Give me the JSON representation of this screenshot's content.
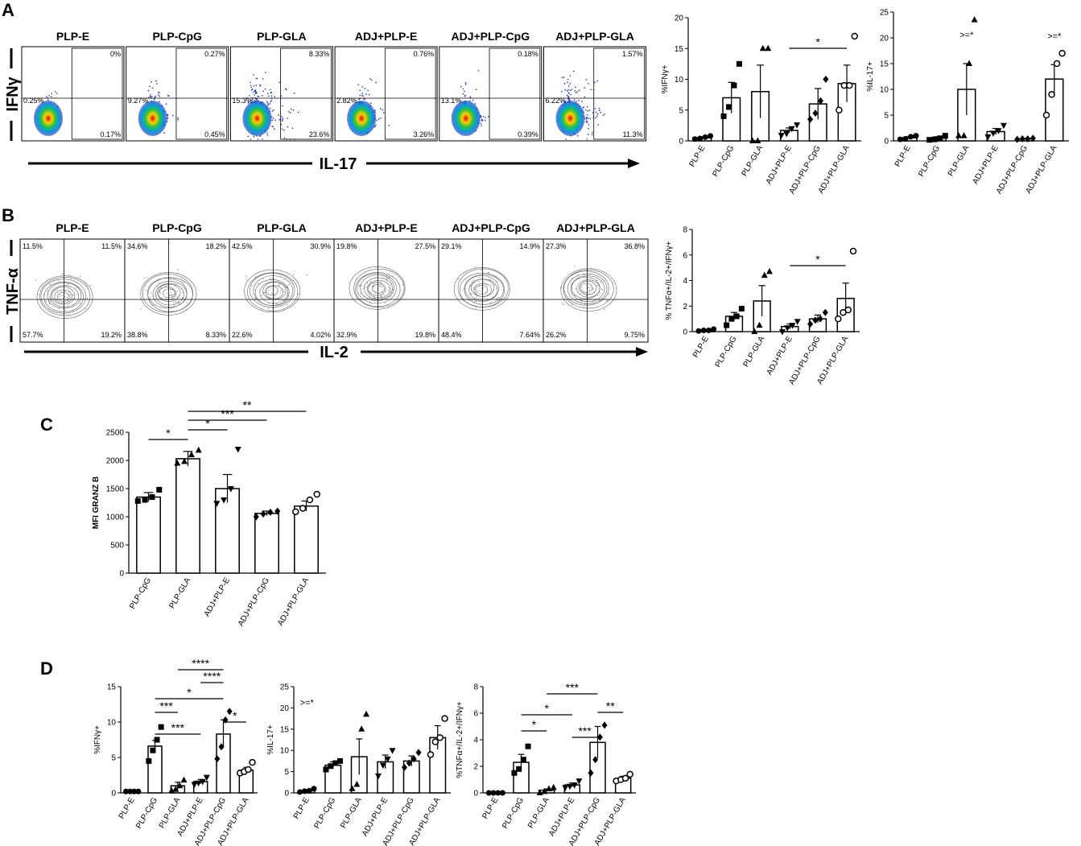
{
  "panels": [
    "A",
    "B",
    "C",
    "D"
  ],
  "flow_a": {
    "y_axis": "IFNγ",
    "x_axis": "IL-17",
    "plots": [
      {
        "title": "PLP-E",
        "tr": "0%",
        "left": "0.25%",
        "br": "0.17%"
      },
      {
        "title": "PLP-CpG",
        "tr": "0.27%",
        "left": "9.27%",
        "br": "0.45%"
      },
      {
        "title": "PLP-GLA",
        "tr": "8.33%",
        "left": "15.3%",
        "br": "23.6%"
      },
      {
        "title": "ADJ+PLP-E",
        "tr": "0.76%",
        "left": "2.82%",
        "br": "3.26%"
      },
      {
        "title": "ADJ+PLP-CpG",
        "tr": "0.18%",
        "left": "13.1%",
        "br": "0.39%"
      },
      {
        "title": "ADJ+PLP-GLA",
        "tr": "1.57%",
        "left": "6.22%",
        "br": "11.3%"
      }
    ]
  },
  "flow_b": {
    "y_axis": "TNF-α",
    "x_axis": "IL-2",
    "plots": [
      {
        "title": "PLP-E",
        "tl": "11.5%",
        "tr": "11.5%",
        "bl": "57.7%",
        "br": "19.2%"
      },
      {
        "title": "PLP-CpG",
        "tl": "34.6%",
        "tr": "18.2%",
        "bl": "38.8%",
        "br": "8.33%"
      },
      {
        "title": "PLP-GLA",
        "tl": "42.5%",
        "tr": "30.9%",
        "bl": "22.6%",
        "br": "4.02%"
      },
      {
        "title": "ADJ+PLP-E",
        "tl": "19.8%",
        "tr": "27.5%",
        "bl": "32.9%",
        "br": "19.8%"
      },
      {
        "title": "ADJ+PLP-CpG",
        "tl": "29.1%",
        "tr": "14.9%",
        "bl": "48.4%",
        "br": "7.64%"
      },
      {
        "title": "ADJ+PLP-GLA",
        "tl": "27.3%",
        "tr": "36.8%",
        "bl": "26.2%",
        "br": "9.75%"
      }
    ]
  },
  "chart_data": [
    {
      "type": "bar",
      "ylabel": "%IFNγ+",
      "color": "#000000",
      "categories": [
        "PLP-E",
        "PLP-CpG",
        "PLP-GLA",
        "ADJ+PLP-E",
        "ADJ+PLP-CpG",
        "ADJ+PLP-GLA"
      ],
      "markers": [
        "circle",
        "square",
        "triangle",
        "triangle-down",
        "diamond",
        "open-circle"
      ],
      "values": [
        0.5,
        7,
        8,
        1.7,
        6,
        9.3
      ],
      "errors": [
        0.15,
        2.5,
        4.3,
        0.4,
        2.5,
        3
      ],
      "points": [
        [
          0.3,
          0.4,
          0.6,
          0.8
        ],
        [
          4,
          5.5,
          9,
          12.5
        ],
        [
          0,
          0,
          15,
          15
        ],
        [
          0.9,
          1.2,
          2,
          2.6
        ],
        [
          3.5,
          4.5,
          6.5,
          10
        ],
        [
          5,
          9,
          9,
          17
        ]
      ],
      "ylim": [
        0,
        20
      ],
      "yticks": [
        0,
        5,
        10,
        15,
        20
      ],
      "significance": [
        {
          "label": "*",
          "groups": [
            "ADJ+PLP-E",
            "ADJ+PLP-GLA"
          ]
        }
      ],
      "annotations": []
    },
    {
      "type": "bar",
      "ylabel": "%IL-17+",
      "color": "#000000",
      "categories": [
        "PLP-E",
        "PLP-CpG",
        "PLP-GLA",
        "ADJ+PLP-E",
        "ADJ+PLP-CpG",
        "ADJ+PLP-GLA"
      ],
      "markers": [
        "circle",
        "square",
        "triangle",
        "triangle-down",
        "diamond",
        "open-circle"
      ],
      "values": [
        0.6,
        0.5,
        10,
        1.8,
        0.4,
        12
      ],
      "errors": [
        0.2,
        0.3,
        5,
        0.6,
        0.1,
        2.8
      ],
      "points": [
        [
          0.3,
          0.4,
          0.8,
          1
        ],
        [
          0.2,
          0.3,
          0.5,
          1
        ],
        [
          1,
          1,
          15,
          23.5
        ],
        [
          0.8,
          1.5,
          2,
          3
        ],
        [
          0.3,
          0.4,
          0.4,
          0.5
        ],
        [
          5,
          9,
          15,
          17
        ]
      ],
      "ylim": [
        0,
        25
      ],
      "yticks": [
        0,
        5,
        10,
        15,
        20,
        25
      ],
      "significance": [],
      "annotations": [
        {
          "text": ">=*",
          "category": "PLP-GLA"
        },
        {
          "text": ">=*",
          "category": "ADJ+PLP-GLA"
        }
      ]
    },
    {
      "type": "bar",
      "ylabel": "% TNFα+/IL-2+/IFNγ+",
      "color": "#000000",
      "categories": [
        "PLP-E",
        "PLP-CpG",
        "PLP-GLA",
        "ADJ+PLP-E",
        "ADJ+PLP-CpG",
        "ADJ+PLP-GLA"
      ],
      "markers": [
        "circle",
        "square",
        "triangle",
        "triangle-down",
        "diamond",
        "open-circle"
      ],
      "values": [
        0.1,
        1.2,
        2.4,
        0.4,
        1,
        2.6
      ],
      "errors": [
        0.05,
        0.3,
        1.2,
        0.2,
        0.3,
        1.2
      ],
      "points": [
        [
          0.05,
          0.1,
          0.1,
          0.2
        ],
        [
          0.5,
          1,
          1.2,
          1.8
        ],
        [
          0,
          0.5,
          4.4,
          4.7
        ],
        [
          0,
          0.3,
          0.5,
          0.8
        ],
        [
          0.6,
          0.9,
          1,
          1.5
        ],
        [
          1,
          1.5,
          1.7,
          6.3
        ]
      ],
      "ylim": [
        0,
        8
      ],
      "yticks": [
        0,
        2,
        4,
        6,
        8
      ],
      "significance": [
        {
          "label": "*",
          "groups": [
            "ADJ+PLP-E",
            "ADJ+PLP-GLA"
          ]
        }
      ],
      "annotations": []
    },
    {
      "type": "bar",
      "ylabel": "MFI GRANZ B",
      "color": "#000000",
      "categories": [
        "PLP-CpG",
        "PLP-GLA",
        "ADJ+PLP-E",
        "ADJ+PLP-CpG",
        "ADJ+PLP-GLA"
      ],
      "markers": [
        "square",
        "triangle",
        "triangle-down",
        "diamond",
        "open-circle"
      ],
      "values": [
        1350,
        2030,
        1500,
        1060,
        1190
      ],
      "errors": [
        80,
        130,
        250,
        40,
        90
      ],
      "points": [
        [
          1280,
          1300,
          1350,
          1480
        ],
        [
          1950,
          1980,
          2100,
          2180
        ],
        [
          1240,
          1300,
          1500,
          2200
        ],
        [
          1000,
          1050,
          1080,
          1100
        ],
        [
          1090,
          1150,
          1300,
          1400
        ]
      ],
      "ylim": [
        0,
        2500
      ],
      "yticks": [
        0,
        500,
        1000,
        1500,
        2000,
        2500
      ],
      "significance": [
        {
          "label": "**",
          "groups": [
            "PLP-GLA",
            "ADJ+PLP-GLA"
          ]
        },
        {
          "label": "***",
          "groups": [
            "PLP-GLA",
            "ADJ+PLP-CpG"
          ]
        },
        {
          "label": "*",
          "groups": [
            "PLP-GLA",
            "ADJ+PLP-E"
          ]
        },
        {
          "label": "*",
          "groups": [
            "PLP-CpG",
            "PLP-GLA"
          ]
        }
      ],
      "annotations": []
    },
    {
      "type": "bar",
      "ylabel": "%IFNγ+",
      "color": "#000000",
      "categories": [
        "PLP-E",
        "PLP-CpG",
        "PLP-GLA",
        "ADJ+PLP-E",
        "ADJ+PLP-CpG",
        "ADJ+PLP-GLA"
      ],
      "markers": [
        "circle",
        "square",
        "triangle",
        "triangle-down",
        "diamond",
        "open-circle"
      ],
      "values": [
        0.2,
        6.6,
        1,
        1.6,
        8.3,
        3.2
      ],
      "errors": [
        0.05,
        0.8,
        0.5,
        0.3,
        2,
        0.4
      ],
      "points": [
        [
          0.2,
          0.2,
          0.2,
          0.2
        ],
        [
          4.5,
          6,
          7.5,
          9.3
        ],
        [
          0.3,
          0.5,
          1,
          1.8
        ],
        [
          1.2,
          1.4,
          1.6,
          2.2
        ],
        [
          4.8,
          6.5,
          10.3,
          11.5
        ],
        [
          2.8,
          3,
          3.3,
          4.3
        ]
      ],
      "ylim": [
        0,
        15
      ],
      "yticks": [
        0,
        5,
        10,
        15
      ],
      "significance": [
        {
          "label": "****",
          "groups": [
            "PLP-GLA",
            "ADJ+PLP-CpG"
          ]
        },
        {
          "label": "****",
          "groups": [
            "ADJ+PLP-E",
            "ADJ+PLP-CpG"
          ]
        },
        {
          "label": "*",
          "groups": [
            "PLP-CpG",
            "ADJ+PLP-CpG"
          ]
        },
        {
          "label": "***",
          "groups": [
            "PLP-CpG",
            "PLP-GLA"
          ]
        },
        {
          "label": "***",
          "groups": [
            "PLP-CpG",
            "ADJ+PLP-E"
          ]
        },
        {
          "label": "*",
          "groups": [
            "ADJ+PLP-CpG",
            "ADJ+PLP-GLA"
          ]
        }
      ],
      "annotations": []
    },
    {
      "type": "bar",
      "ylabel": "%IL-17+",
      "color": "#000000",
      "categories": [
        "PLP-E",
        "PLP-CpG",
        "PLP-GLA",
        "ADJ+PLP-E",
        "ADJ+PLP-CpG",
        "ADJ+PLP-GLA"
      ],
      "markers": [
        "circle",
        "square",
        "triangle",
        "triangle-down",
        "diamond",
        "open-circle"
      ],
      "values": [
        0.5,
        6.5,
        8.5,
        7.3,
        7.5,
        13
      ],
      "errors": [
        0.2,
        0.8,
        4.2,
        1.6,
        1.2,
        2.8
      ],
      "points": [
        [
          0.2,
          0.4,
          0.5,
          1
        ],
        [
          5.5,
          6.3,
          7,
          7.5
        ],
        [
          1,
          2,
          15,
          18.5
        ],
        [
          4,
          6.5,
          8,
          10
        ],
        [
          6,
          7,
          8,
          9.5
        ],
        [
          9,
          12,
          13,
          17.5
        ]
      ],
      "ylim": [
        0,
        25
      ],
      "yticks": [
        0,
        5,
        10,
        15,
        20,
        25
      ],
      "significance": [],
      "annotations": [
        {
          "text": ">=*",
          "category": "PLP-E"
        }
      ]
    },
    {
      "type": "bar",
      "ylabel": "%TNFα+/IL-2+/IFNγ+",
      "color": "#000000",
      "categories": [
        "PLP-E",
        "PLP-CpG",
        "PLP-GLA",
        "ADJ+PLP-E",
        "ADJ+PLP-CpG",
        "ADJ+PLP-GLA"
      ],
      "markers": [
        "circle",
        "square",
        "triangle",
        "triangle-down",
        "diamond",
        "open-circle"
      ],
      "values": [
        0,
        2.3,
        0.2,
        0.6,
        3.8,
        1.1
      ],
      "errors": [
        0,
        0.6,
        0.1,
        0.15,
        1.2,
        0.15
      ],
      "points": [
        [
          0,
          0,
          0,
          0
        ],
        [
          1.5,
          1.8,
          2.5,
          3.5
        ],
        [
          0,
          0.1,
          0.3,
          0.4
        ],
        [
          0.4,
          0.5,
          0.6,
          0.9
        ],
        [
          1.5,
          2.5,
          4.2,
          5.1
        ],
        [
          0.9,
          1,
          1.1,
          1.4
        ]
      ],
      "ylim": [
        0,
        8
      ],
      "yticks": [
        0,
        2,
        4,
        6,
        8
      ],
      "significance": [
        {
          "label": "***",
          "groups": [
            "PLP-GLA",
            "ADJ+PLP-CpG"
          ]
        },
        {
          "label": "*",
          "groups": [
            "PLP-CpG",
            "ADJ+PLP-E"
          ]
        },
        {
          "label": "*",
          "groups": [
            "PLP-CpG",
            "PLP-GLA"
          ]
        },
        {
          "label": "***",
          "groups": [
            "ADJ+PLP-E",
            "ADJ+PLP-CpG"
          ]
        },
        {
          "label": "**",
          "groups": [
            "ADJ+PLP-CpG",
            "ADJ+PLP-GLA"
          ]
        }
      ],
      "annotations": []
    }
  ]
}
